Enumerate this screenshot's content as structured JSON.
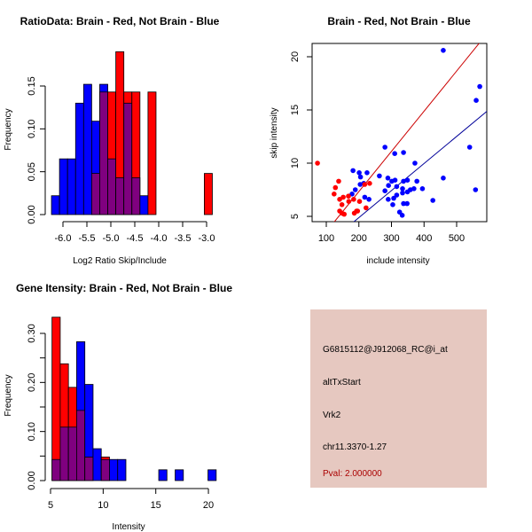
{
  "colors": {
    "red": "#ff0000",
    "blue": "#0000ff",
    "overlap": "#7f007f",
    "panel_bg": "#e6c8c0",
    "pval": "#aa0000",
    "red_line": "#cc0000",
    "blue_line": "#000099"
  },
  "chart_data": [
    {
      "type": "bar",
      "title": "RatioData: Brain - Red, Not Brain - Blue",
      "xlabel": "Log2 Ratio Skip/Include",
      "ylabel": "Frequency",
      "xlim": [
        -6.24,
        -2.9
      ],
      "ylim": [
        0,
        0.19
      ],
      "xticks": [
        "-6.0",
        "-5.5",
        "-5.0",
        "-4.5",
        "-4.0",
        "-3.5",
        "-3.0"
      ],
      "xtick_values": [
        -6.0,
        -5.5,
        -5.0,
        -4.5,
        -4.0,
        -3.5,
        -3.0
      ],
      "yticks": [
        "0.00",
        "0.05",
        "0.10",
        "0.15"
      ],
      "ytick_values": [
        0,
        0.05,
        0.1,
        0.15
      ],
      "bin_start": -6.24,
      "bin_width": 0.168,
      "series": [
        {
          "name": "Not Brain",
          "color": "blue",
          "values": [
            0.022,
            0.065,
            0.065,
            0.13,
            0.152,
            0.109,
            0.152,
            0.065,
            0.043,
            0.13,
            0.043,
            0.022,
            0,
            0,
            0,
            0,
            0,
            0,
            0,
            0
          ]
        },
        {
          "name": "Brain",
          "color": "red",
          "values": [
            0,
            0,
            0,
            0,
            0,
            0.048,
            0.143,
            0.143,
            0.19,
            0.143,
            0.143,
            0,
            0.143,
            0,
            0,
            0,
            0,
            0,
            0,
            0.048
          ]
        }
      ]
    },
    {
      "type": "scatter",
      "title": "Brain - Red, Not Brain - Blue",
      "xlabel": "include intensity",
      "ylabel": "skip intensity",
      "xticks": [
        "100",
        "200",
        "300",
        "400",
        "500"
      ],
      "xtick_values": [
        100,
        200,
        300,
        400,
        500
      ],
      "yticks": [
        "5",
        "10",
        "15",
        "20"
      ],
      "ytick_values": [
        5,
        10,
        15,
        20
      ],
      "xlim": [
        55,
        590
      ],
      "ylim": [
        4.5,
        21.3
      ],
      "series": [
        {
          "name": "Brain",
          "color": "red",
          "points": [
            [
              73,
              10.0
            ],
            [
              138,
              8.3
            ],
            [
              128,
              7.7
            ],
            [
              124,
              7.1
            ],
            [
              141,
              6.6
            ],
            [
              152,
              6.8
            ],
            [
              148,
              6.1
            ],
            [
              141,
              5.5
            ],
            [
              148,
              5.3
            ],
            [
              155,
              5.2
            ],
            [
              168,
              6.9
            ],
            [
              169,
              6.4
            ],
            [
              184,
              6.6
            ],
            [
              186,
              5.3
            ],
            [
              196,
              5.5
            ],
            [
              202,
              6.4
            ],
            [
              218,
              8.0
            ],
            [
              233,
              8.1
            ],
            [
              222,
              5.8
            ],
            [
              193,
              5.5
            ]
          ],
          "fit": {
            "slope": 0.03775,
            "intercept": -0.219
          }
        },
        {
          "name": "Not Brain",
          "color": "blue",
          "points": [
            [
              459,
              20.6
            ],
            [
              571,
              17.2
            ],
            [
              560,
              15.9
            ],
            [
              540,
              11.5
            ],
            [
              558,
              7.5
            ],
            [
              459,
              8.6
            ],
            [
              280,
              11.5
            ],
            [
              310,
              10.9
            ],
            [
              337,
              11.0
            ],
            [
              372,
              10.0
            ],
            [
              182,
              9.3
            ],
            [
              201,
              9.1
            ],
            [
              225,
              9.1
            ],
            [
              205,
              8.7
            ],
            [
              263,
              8.8
            ],
            [
              189,
              7.5
            ],
            [
              179,
              7.1
            ],
            [
              204,
              8.0
            ],
            [
              215,
              8.1
            ],
            [
              218,
              6.8
            ],
            [
              231,
              6.6
            ],
            [
              280,
              7.4
            ],
            [
              289,
              8.6
            ],
            [
              291,
              7.9
            ],
            [
              290,
              6.6
            ],
            [
              301,
              8.3
            ],
            [
              311,
              8.4
            ],
            [
              316,
              7.8
            ],
            [
              316,
              7.0
            ],
            [
              307,
              6.7
            ],
            [
              304,
              6.1
            ],
            [
              325,
              5.4
            ],
            [
              333,
              5.1
            ],
            [
              334,
              7.6
            ],
            [
              334,
              7.2
            ],
            [
              337,
              8.3
            ],
            [
              349,
              8.4
            ],
            [
              337,
              6.2
            ],
            [
              348,
              6.2
            ],
            [
              349,
              7.3
            ],
            [
              358,
              7.5
            ],
            [
              369,
              7.6
            ],
            [
              378,
              8.3
            ],
            [
              395,
              7.6
            ],
            [
              427,
              6.5
            ]
          ],
          "fit": {
            "slope": 0.02543,
            "intercept": -0.205
          }
        }
      ]
    },
    {
      "type": "bar",
      "title": "Gene Itensity: Brain - Red, Not Brain - Blue",
      "xlabel": "Intensity",
      "ylabel": "Frequency",
      "xlim": [
        5.14,
        20.7
      ],
      "ylim": [
        0,
        0.34
      ],
      "xticks": [
        "5",
        "10",
        "15",
        "20"
      ],
      "xtick_values": [
        5,
        10,
        15,
        20
      ],
      "yticks": [
        "0.00",
        "0.10",
        "0.20",
        "0.30"
      ],
      "ytick_values": [
        0,
        0.1,
        0.2,
        0.3
      ],
      "minor_ytick_values": [
        0.05,
        0.15,
        0.25
      ],
      "bin_start": 5.14,
      "bin_width": 0.78,
      "series": [
        {
          "name": "Not Brain",
          "color": "blue",
          "values": [
            0.043,
            0.109,
            0.109,
            0.283,
            0.196,
            0.065,
            0.043,
            0.043,
            0.043,
            0,
            0,
            0,
            0,
            0.022,
            0,
            0.022,
            0,
            0,
            0,
            0.022
          ]
        },
        {
          "name": "Brain",
          "color": "red",
          "values": [
            0.333,
            0.238,
            0.19,
            0.143,
            0.048,
            0,
            0.048,
            0,
            0,
            0,
            0,
            0,
            0,
            0,
            0,
            0,
            0,
            0,
            0,
            0
          ]
        }
      ]
    }
  ],
  "info_panel": {
    "probe_id": "G6815112@J912068_RC@i_at",
    "event_type": "altTxStart",
    "gene": "Vrk2",
    "location": "chr11.3370-1.27",
    "pval": "Pval: 2.000000"
  }
}
